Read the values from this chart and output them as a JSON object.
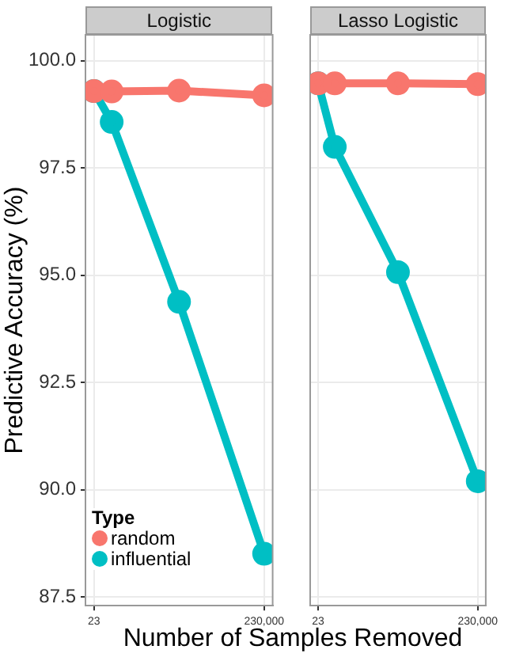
{
  "chart_data": [
    {
      "type": "line",
      "title": "Logistic",
      "xlabel": "Number of Samples Removed",
      "ylabel": "Predictive Accuracy (%)",
      "legend_title": "Type",
      "legend": "bottom left",
      "log": "x",
      "marker": "circle",
      "line_style": "solid",
      "grid": true,
      "x": [
        23,
        60,
        2300,
        230000
      ],
      "series": [
        {
          "name": "random",
          "color": "#f8766d",
          "values": [
            99.29,
            99.28,
            99.3,
            99.19
          ]
        },
        {
          "name": "influential",
          "color": "#00bfc4",
          "values": [
            99.29,
            98.57,
            94.38,
            88.51
          ]
        }
      ],
      "xlim": [
        14.5,
        365000
      ],
      "xticks": [
        23,
        {
          "value": 230000,
          "label": "230,000"
        }
      ],
      "ylim": [
        87.3,
        100.6
      ],
      "yticks": [
        {
          "value": 87.5,
          "label": "87.5"
        },
        {
          "value": 90,
          "label": "90.0"
        },
        {
          "value": 92.5,
          "label": "92.5"
        },
        {
          "value": 95,
          "label": "95.0"
        },
        {
          "value": 97.5,
          "label": "97.5"
        },
        {
          "value": 100,
          "label": "100.0"
        }
      ]
    },
    {
      "type": "line",
      "title": "Lasso Logistic",
      "log": "x",
      "marker": "circle",
      "line_style": "solid",
      "grid": true,
      "tick_labels": "x",
      "x": [
        23,
        60,
        2300,
        230000
      ],
      "series": [
        {
          "color": "#f8766d",
          "values": [
            99.47,
            99.47,
            99.47,
            99.45
          ]
        },
        {
          "color": "#00bfc4",
          "values": [
            99.47,
            97.99,
            95.07,
            90.2
          ]
        }
      ],
      "xlim": [
        14.5,
        365000
      ],
      "xticks": [
        23,
        {
          "value": 230000,
          "label": "230,000"
        }
      ],
      "ylim": [
        87.3,
        100.6
      ],
      "yticks": [
        87.5,
        90,
        92.5,
        95,
        97.5,
        100
      ]
    }
  ]
}
